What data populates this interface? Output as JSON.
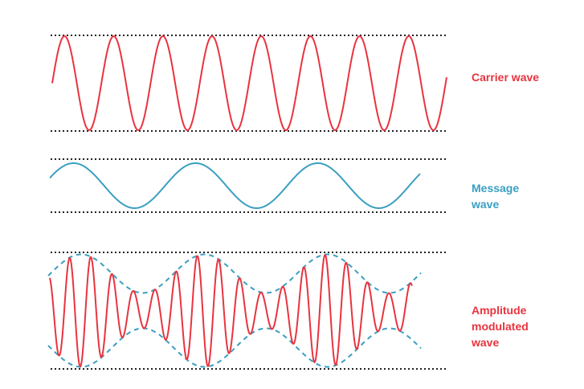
{
  "colors": {
    "carrier": "#e8343f",
    "message": "#3a9fc1",
    "envelope": "#3a9fc1",
    "reference_lines": "#222222",
    "background": "#ffffff"
  },
  "labels": {
    "carrier": [
      "Carrier wave"
    ],
    "message": [
      "Message",
      "wave"
    ],
    "modulated": [
      "Amplitude",
      "modulated",
      "wave"
    ]
  },
  "waves": {
    "carrier": {
      "cycles": 8
    },
    "message": {
      "cycles": 3
    },
    "modulated": {
      "envelope_style": "dashed",
      "reference_line_style": "dotted"
    }
  }
}
